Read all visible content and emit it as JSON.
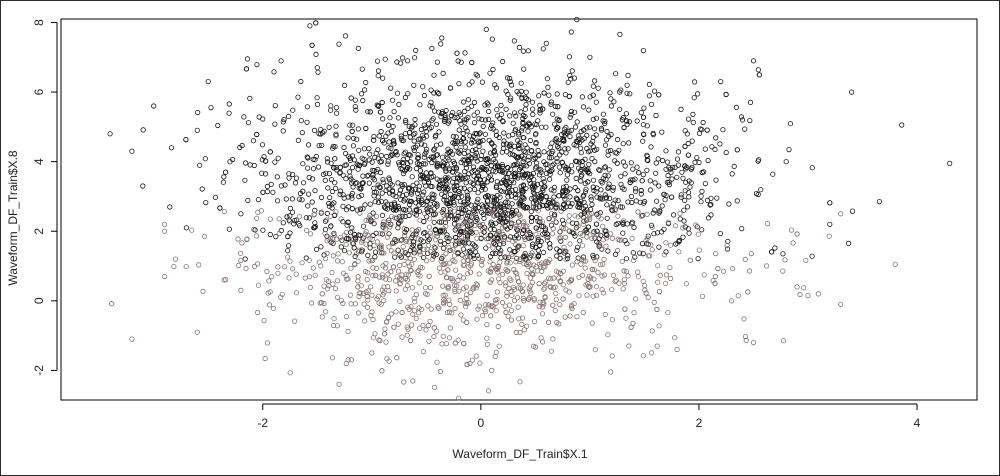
{
  "chart_data": {
    "type": "scatter",
    "title": "",
    "xlabel": "Waveform_DF_Train$X.1",
    "ylabel": "Waveform_DF_Train$X.8",
    "xlim": [
      -3.85,
      4.55
    ],
    "ylim": [
      -2.85,
      8.1
    ],
    "x_ticks": [
      -2,
      0,
      2,
      4
    ],
    "y_ticks": [
      -2,
      0,
      2,
      4,
      6,
      8
    ],
    "grid": false,
    "legend": "none",
    "point_count": 3300,
    "marker": "open-circle",
    "colors": {
      "upper_points": "#1a1a1a",
      "lower_points": "#8a7474",
      "frame": "#2b2b2b"
    },
    "series": [
      {
        "points": [
          [
            -3.4,
            4.8
          ],
          [
            -3.2,
            4.3
          ],
          [
            -3.1,
            3.3
          ],
          [
            -3.0,
            5.6
          ],
          [
            -2.9,
            2.2
          ],
          [
            -2.9,
            0.7
          ],
          [
            -2.8,
            1.2
          ],
          [
            -2.7,
            2.1
          ],
          [
            -2.6,
            4.9
          ],
          [
            -2.6,
            -0.9
          ],
          [
            -2.5,
            6.3
          ],
          [
            -2.3,
            4.0
          ],
          [
            -2.2,
            2.5
          ],
          [
            -2.2,
            0.3
          ],
          [
            -1.3,
            -2.4
          ],
          [
            0.05,
            7.8
          ],
          [
            0.6,
            7.4
          ],
          [
            1.0,
            7.0
          ],
          [
            2.5,
            6.9
          ],
          [
            3.4,
            6.0
          ],
          [
            4.3,
            3.95
          ],
          [
            3.8,
            1.05
          ],
          [
            3.0,
            0.15
          ],
          [
            3.3,
            -0.1
          ],
          [
            2.5,
            -1.2
          ],
          [
            1.8,
            -1.4
          ],
          [
            0.1,
            -2.0
          ],
          [
            -0.1,
            -1.8
          ],
          [
            -1.0,
            -1.5
          ],
          [
            -1.5,
            6.7
          ],
          [
            -0.9,
            6.4
          ],
          [
            2.2,
            6.3
          ],
          [
            2.8,
            4.0
          ],
          [
            3.2,
            2.2
          ],
          [
            3.3,
            2.5
          ],
          [
            2.9,
            0.4
          ],
          [
            2.3,
            0.0
          ],
          [
            -3.2,
            -1.1
          ],
          [
            -2.9,
            2.0
          ],
          [
            2.4,
            5.2
          ]
        ]
      }
    ]
  }
}
